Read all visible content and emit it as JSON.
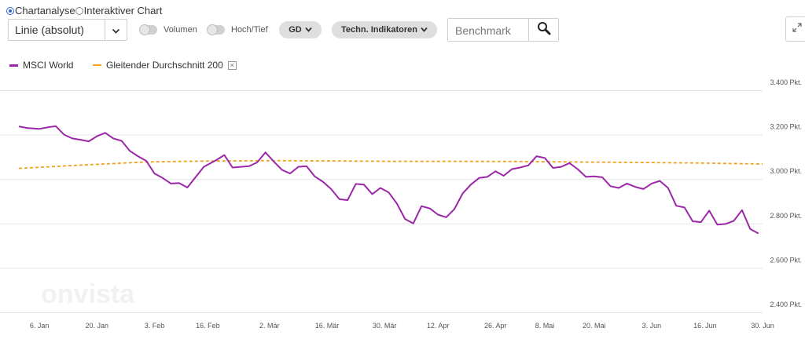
{
  "view_modes": [
    {
      "label": "Chartanalyse",
      "selected": true
    },
    {
      "label": "Interaktiver Chart",
      "selected": false
    }
  ],
  "chart_type_select": {
    "value": "Linie (absolut)"
  },
  "toggles": {
    "volume": "Volumen",
    "high_low": "Hoch/Tief"
  },
  "buttons": {
    "gd": "GD",
    "indicators": "Techn. Indikatoren"
  },
  "search": {
    "placeholder": "Benchmark"
  },
  "icons": {
    "dropdown": "chevron-down-icon",
    "search": "magnifier-icon",
    "expand": "expand-icon",
    "remove": "close-icon"
  },
  "colors": {
    "msci": "#9b27a8",
    "gd200": "#f0a11e",
    "grid": "#e6e6e6",
    "accent": "#2a6ad8"
  },
  "watermark": "onvista",
  "chart_data": {
    "type": "line",
    "legend_position": "top-left",
    "grid": true,
    "y_axis_side": "right",
    "ylim": [
      2400,
      3400
    ],
    "yticks": [
      2400,
      2600,
      2800,
      3000,
      3200,
      3400
    ],
    "ytick_labels": [
      "2.400 Pkt.",
      "2.600 Pkt.",
      "2.800 Pkt.",
      "3.000 Pkt.",
      "3.200 Pkt.",
      "3.400 Pkt."
    ],
    "xrange": [
      "2020-01-01",
      "2020-06-30"
    ],
    "xticks": [
      {
        "date": "2020-01-06",
        "label": "6. Jan"
      },
      {
        "date": "2020-01-20",
        "label": "20. Jan"
      },
      {
        "date": "2020-02-03",
        "label": "3. Feb"
      },
      {
        "date": "2020-02-16",
        "label": "16. Feb"
      },
      {
        "date": "2020-03-02",
        "label": "2. Mär"
      },
      {
        "date": "2020-03-16",
        "label": "16. Mär"
      },
      {
        "date": "2020-03-30",
        "label": "30. Mär"
      },
      {
        "date": "2020-04-12",
        "label": "12. Apr"
      },
      {
        "date": "2020-04-26",
        "label": "26. Apr"
      },
      {
        "date": "2020-05-08",
        "label": "8. Mai"
      },
      {
        "date": "2020-05-20",
        "label": "20. Mai"
      },
      {
        "date": "2020-06-03",
        "label": "3. Jun"
      },
      {
        "date": "2020-06-16",
        "label": "16. Jun"
      },
      {
        "date": "2020-06-30",
        "label": "30. Jun"
      }
    ],
    "series": [
      {
        "name": "MSCI World",
        "style": "solid",
        "points": [
          [
            "2020-01-01",
            3237
          ],
          [
            "2020-01-03",
            3230
          ],
          [
            "2020-01-06",
            3226
          ],
          [
            "2020-01-08",
            3233
          ],
          [
            "2020-01-10",
            3238
          ],
          [
            "2020-01-12",
            3200
          ],
          [
            "2020-01-14",
            3183
          ],
          [
            "2020-01-16",
            3177
          ],
          [
            "2020-01-18",
            3170
          ],
          [
            "2020-01-20",
            3193
          ],
          [
            "2020-01-22",
            3208
          ],
          [
            "2020-01-24",
            3183
          ],
          [
            "2020-01-26",
            3172
          ],
          [
            "2020-01-28",
            3127
          ],
          [
            "2020-01-30",
            3103
          ],
          [
            "2020-02-01",
            3082
          ],
          [
            "2020-02-03",
            3025
          ],
          [
            "2020-02-05",
            3005
          ],
          [
            "2020-02-07",
            2980
          ],
          [
            "2020-02-09",
            2982
          ],
          [
            "2020-02-11",
            2962
          ],
          [
            "2020-02-13",
            3008
          ],
          [
            "2020-02-15",
            3055
          ],
          [
            "2020-02-18",
            3085
          ],
          [
            "2020-02-20",
            3108
          ],
          [
            "2020-02-22",
            3052
          ],
          [
            "2020-02-24",
            3055
          ],
          [
            "2020-02-26",
            3058
          ],
          [
            "2020-02-28",
            3075
          ],
          [
            "2020-03-01",
            3120
          ],
          [
            "2020-03-03",
            3080
          ],
          [
            "2020-03-05",
            3042
          ],
          [
            "2020-03-07",
            3025
          ],
          [
            "2020-03-09",
            3055
          ],
          [
            "2020-03-11",
            3058
          ],
          [
            "2020-03-13",
            3012
          ],
          [
            "2020-03-15",
            2988
          ],
          [
            "2020-03-17",
            2955
          ],
          [
            "2020-03-19",
            2910
          ],
          [
            "2020-03-21",
            2905
          ],
          [
            "2020-03-23",
            2978
          ],
          [
            "2020-03-25",
            2975
          ],
          [
            "2020-03-27",
            2932
          ],
          [
            "2020-03-29",
            2960
          ],
          [
            "2020-03-31",
            2940
          ],
          [
            "2020-04-02",
            2890
          ],
          [
            "2020-04-04",
            2820
          ],
          [
            "2020-04-06",
            2800
          ],
          [
            "2020-04-08",
            2878
          ],
          [
            "2020-04-10",
            2868
          ],
          [
            "2020-04-12",
            2840
          ],
          [
            "2020-04-14",
            2828
          ],
          [
            "2020-04-16",
            2865
          ],
          [
            "2020-04-18",
            2935
          ],
          [
            "2020-04-20",
            2975
          ],
          [
            "2020-04-22",
            3005
          ],
          [
            "2020-04-24",
            3010
          ],
          [
            "2020-04-26",
            3035
          ],
          [
            "2020-04-28",
            3015
          ],
          [
            "2020-04-30",
            3045
          ],
          [
            "2020-05-02",
            3052
          ],
          [
            "2020-05-04",
            3062
          ],
          [
            "2020-05-06",
            3103
          ],
          [
            "2020-05-08",
            3095
          ],
          [
            "2020-05-10",
            3050
          ],
          [
            "2020-05-12",
            3055
          ],
          [
            "2020-05-14",
            3072
          ],
          [
            "2020-05-16",
            3045
          ],
          [
            "2020-05-18",
            3010
          ],
          [
            "2020-05-20",
            3012
          ],
          [
            "2020-05-22",
            3008
          ],
          [
            "2020-05-24",
            2968
          ],
          [
            "2020-05-26",
            2960
          ],
          [
            "2020-05-28",
            2980
          ],
          [
            "2020-05-30",
            2965
          ],
          [
            "2020-06-01",
            2955
          ],
          [
            "2020-06-03",
            2980
          ],
          [
            "2020-06-05",
            2992
          ],
          [
            "2020-06-07",
            2960
          ],
          [
            "2020-06-09",
            2880
          ],
          [
            "2020-06-11",
            2872
          ],
          [
            "2020-06-13",
            2810
          ],
          [
            "2020-06-15",
            2806
          ],
          [
            "2020-06-17",
            2858
          ],
          [
            "2020-06-19",
            2795
          ],
          [
            "2020-06-21",
            2798
          ],
          [
            "2020-06-23",
            2812
          ],
          [
            "2020-06-25",
            2860
          ],
          [
            "2020-06-27",
            2775
          ],
          [
            "2020-06-29",
            2755
          ]
        ]
      },
      {
        "name": "Gleitender Durchschnitt 200",
        "style": "dashed",
        "points": [
          [
            "2020-01-01",
            3048
          ],
          [
            "2020-01-15",
            3062
          ],
          [
            "2020-02-01",
            3077
          ],
          [
            "2020-02-15",
            3081
          ],
          [
            "2020-03-01",
            3083
          ],
          [
            "2020-03-15",
            3082
          ],
          [
            "2020-04-01",
            3080
          ],
          [
            "2020-04-15",
            3080
          ],
          [
            "2020-05-01",
            3079
          ],
          [
            "2020-05-15",
            3077
          ],
          [
            "2020-05-31",
            3075
          ],
          [
            "2020-06-15",
            3072
          ],
          [
            "2020-06-30",
            3068
          ]
        ]
      }
    ]
  }
}
